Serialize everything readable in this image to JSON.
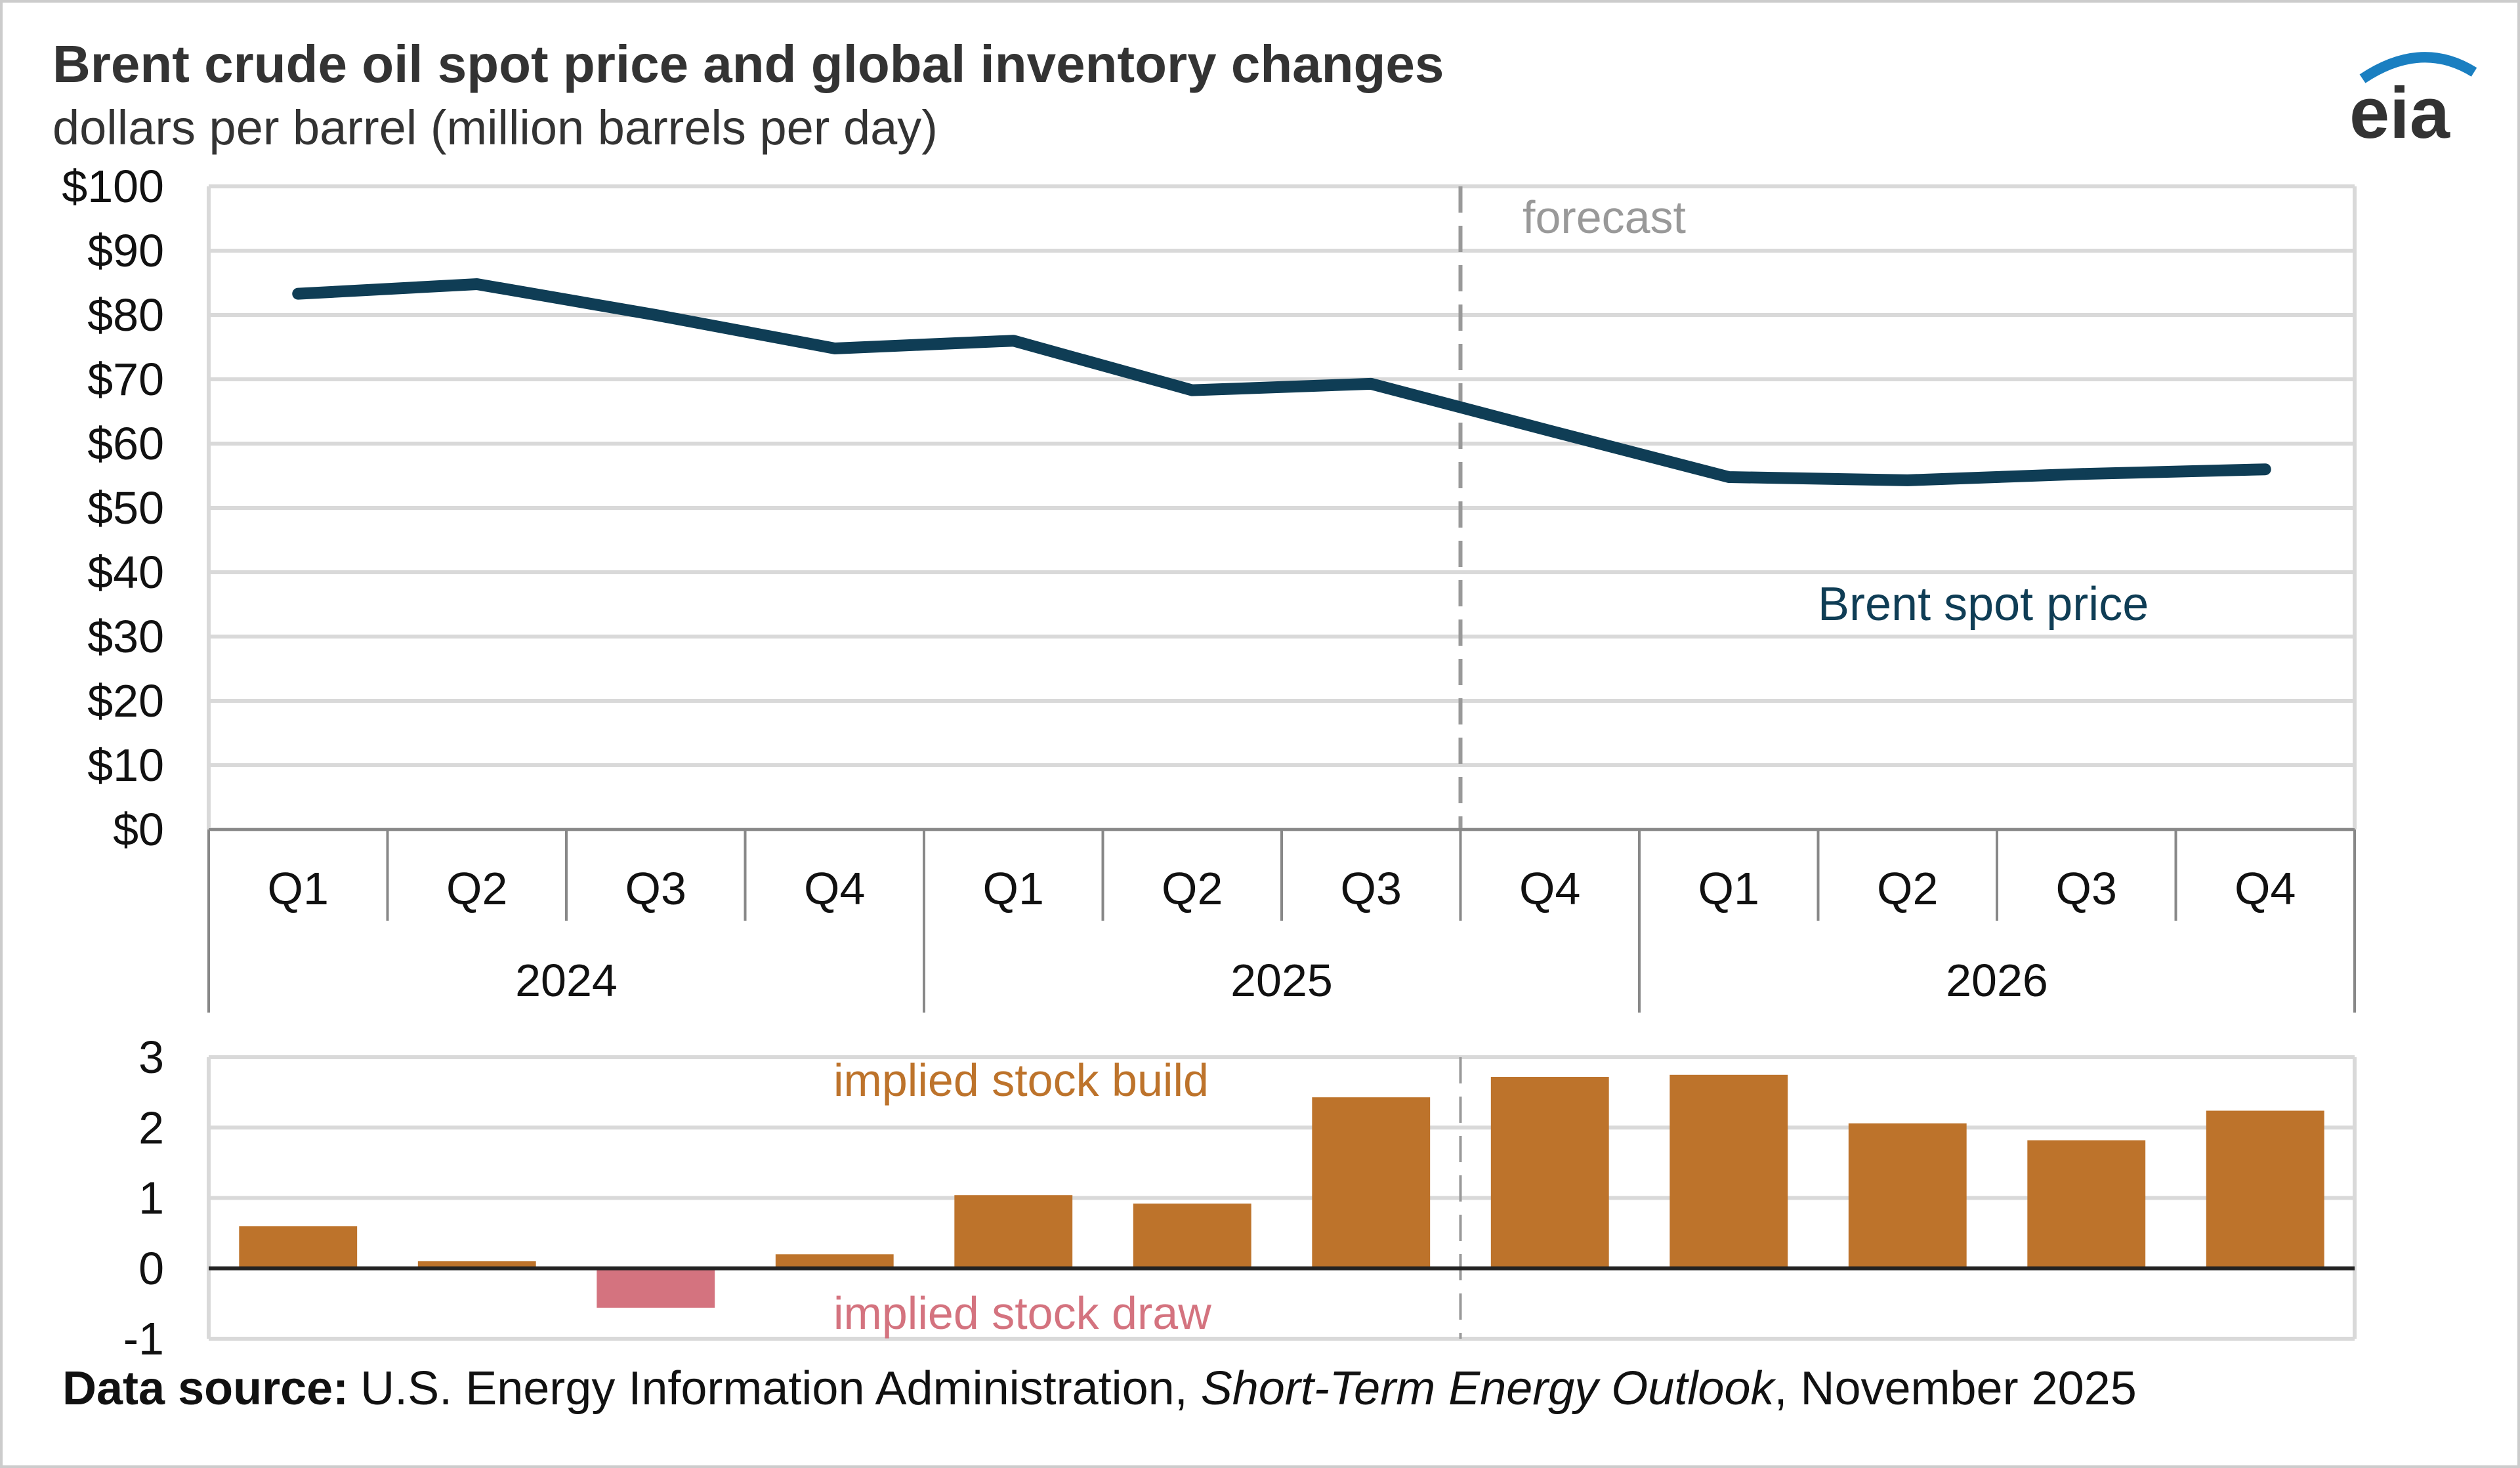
{
  "title": "Brent crude oil spot price and global inventory changes",
  "subtitle": "dollars per barrel (million barrels per day)",
  "logo_text": "eia",
  "source": {
    "label": "Data source:",
    "text1": "U.S. Energy Information Administration, ",
    "publication": "Short-Term Energy Outlook",
    "text2": ", November 2025"
  },
  "colors": {
    "price": "#0f3d55",
    "build": "#bd732b",
    "draw": "#d4737f",
    "forecast": "#999999"
  },
  "chart_data": [
    {
      "type": "line",
      "categories": [
        "Q1",
        "Q2",
        "Q3",
        "Q4",
        "Q1",
        "Q2",
        "Q3",
        "Q4",
        "Q1",
        "Q2",
        "Q3",
        "Q4"
      ],
      "years": [
        "2024",
        "2025",
        "2026"
      ],
      "series": [
        {
          "name": "Brent spot price",
          "values": [
            83.3,
            84.8,
            80.0,
            74.8,
            76.0,
            68.3,
            69.3,
            62.0,
            54.8,
            54.3,
            55.3,
            56.0
          ]
        }
      ],
      "ylim": [
        0,
        100
      ],
      "yticks": [
        "$0",
        "$10",
        "$20",
        "$30",
        "$40",
        "$50",
        "$60",
        "$70",
        "$80",
        "$90",
        "$100"
      ],
      "forecast_label": "forecast",
      "forecast_start": "2025 Q4",
      "grid": true
    },
    {
      "type": "bar",
      "categories": [
        "2024 Q1",
        "2024 Q2",
        "2024 Q3",
        "2024 Q4",
        "2025 Q1",
        "2025 Q2",
        "2025 Q3",
        "2025 Q4",
        "2026 Q1",
        "2026 Q2",
        "2026 Q3",
        "2026 Q4"
      ],
      "values": [
        0.6,
        0.1,
        -0.56,
        0.2,
        1.04,
        0.92,
        2.43,
        2.72,
        2.75,
        2.06,
        1.82,
        2.24
      ],
      "ylim": [
        -1,
        3
      ],
      "yticks": [
        "-1",
        "0",
        "1",
        "2",
        "3"
      ],
      "annotations": {
        "positive": "implied stock build",
        "negative": "implied stock draw"
      },
      "grid": true
    }
  ]
}
